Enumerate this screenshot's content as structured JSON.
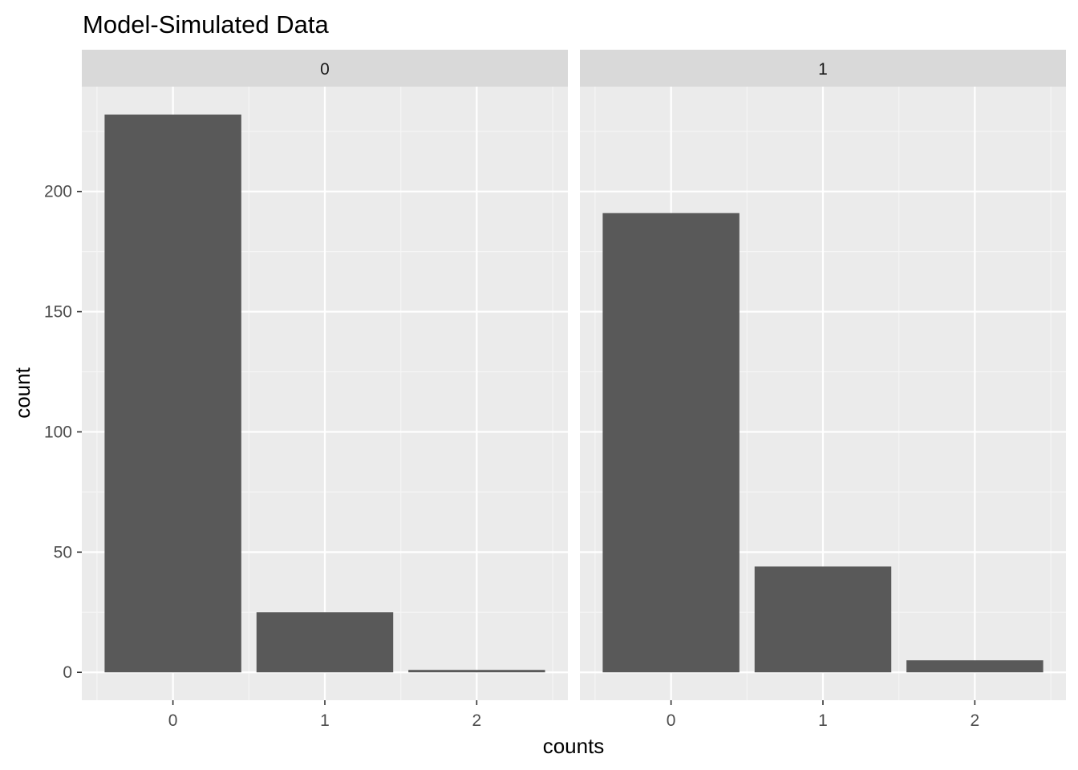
{
  "chart_data": {
    "type": "bar",
    "title": "Model-Simulated Data",
    "xlabel": "counts",
    "ylabel": "count",
    "categories": [
      "0",
      "1",
      "2"
    ],
    "ylim": [
      -11.6,
      243.6
    ],
    "yticks": [
      0,
      50,
      100,
      150,
      200
    ],
    "facets": [
      {
        "strip_label": "0",
        "values": [
          232,
          25,
          1
        ]
      },
      {
        "strip_label": "1",
        "values": [
          191,
          44,
          5
        ]
      }
    ],
    "grid": true,
    "colors": {
      "bar": "#595959",
      "panel_background": "#ebebeb",
      "strip_background": "#d9d9d9",
      "grid_major": "#ffffff",
      "grid_minor": "#f5f5f5",
      "tick_label": "#4d4d4d",
      "tick_mark": "#333333"
    }
  }
}
